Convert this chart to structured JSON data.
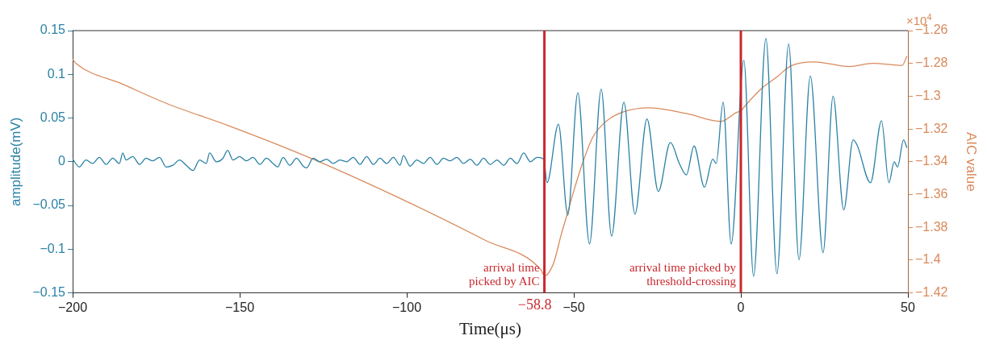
{
  "chart_data": {
    "type": "line",
    "xlabel": "Time(μs)",
    "ylabel": "amplitude(mV)",
    "y2label": "AIC value",
    "xlim": [
      -200,
      50
    ],
    "xticks": [
      -200,
      -150,
      -100,
      -50,
      0,
      50
    ],
    "ylim": [
      -0.15,
      0.15
    ],
    "yticks": [
      -0.15,
      -0.1,
      -0.05,
      0,
      0.05,
      0.1,
      0.15
    ],
    "y2lim": [
      -1.42,
      -1.26
    ],
    "y2ticks": [
      -1.42,
      -1.4,
      -1.38,
      -1.36,
      -1.34,
      -1.32,
      -1.3,
      -1.28,
      -1.26
    ],
    "grid": false,
    "legend": false,
    "marker": "none",
    "line_style": "solid",
    "series": [
      {
        "color": "#2b82a6",
        "x": [
          -200,
          -198,
          -196,
          -194,
          -192,
          -190,
          -188,
          -186,
          -185,
          -184,
          -182,
          -180,
          -178,
          -176,
          -174,
          -172,
          -170,
          -168,
          -166,
          -164,
          -162,
          -160,
          -159,
          -157,
          -155,
          -153.6,
          -152,
          -150,
          -148,
          -146,
          -144,
          -142,
          -140,
          -138.6,
          -137,
          -135,
          -133,
          -131,
          -130,
          -128,
          -126,
          -124,
          -122,
          -120,
          -118,
          -116,
          -114,
          -112,
          -110,
          -108,
          -106,
          -104,
          -102,
          -101,
          -99,
          -97,
          -95,
          -93,
          -91,
          -89,
          -87,
          -85,
          -83,
          -81,
          -79,
          -77,
          -75,
          -73,
          -71,
          -69,
          -67,
          -65,
          -63,
          -61,
          -59.5,
          -58.9,
          -58,
          -54.6,
          -51.8,
          -48.8,
          -45.3,
          -41.8,
          -38.7,
          -35,
          -31.7,
          -28.1,
          -24.7,
          -21.1,
          -18.3,
          -16.3,
          -14,
          -10.9,
          -8.4,
          -7.4,
          -5.3,
          -2.9,
          0.9,
          3.8,
          7.5,
          10.8,
          14.3,
          17.4,
          20.8,
          24.6,
          27.6,
          30.8,
          33.6,
          34.8,
          38.8,
          42.1,
          44.3,
          45.9,
          46.9,
          48.7,
          49.7
        ],
        "values": [
          0.003,
          -0.006,
          0.002,
          -0.002,
          0.005,
          -0.003,
          0.004,
          -0.002,
          0.01,
          0.002,
          0.006,
          -0.003,
          0.004,
          0.001,
          0.005,
          -0.006,
          -0.004,
          0.002,
          -0.004,
          -0.01,
          0.002,
          -0.002,
          0.01,
          0.0,
          0.004,
          0.013,
          0.002,
          0.006,
          0.001,
          0.005,
          -0.003,
          0.004,
          -0.002,
          -0.006,
          0.005,
          -0.004,
          0.004,
          -0.005,
          -0.007,
          0.004,
          0.0,
          0.003,
          -0.002,
          0.002,
          0.0,
          0.005,
          -0.003,
          0.006,
          -0.003,
          0.004,
          -0.002,
          0.005,
          -0.004,
          0.007,
          -0.005,
          0.002,
          -0.002,
          0.005,
          -0.003,
          0.004,
          0.001,
          0.005,
          -0.002,
          0.003,
          -0.004,
          0.004,
          -0.003,
          0.002,
          -0.004,
          0.004,
          -0.002,
          0.01,
          0.0,
          0.005,
          0.004,
          0.001,
          -0.024,
          0.043,
          -0.061,
          0.079,
          -0.094,
          0.083,
          -0.085,
          0.068,
          -0.06,
          0.049,
          -0.034,
          0.022,
          -0.003,
          -0.015,
          0.018,
          -0.029,
          0.003,
          -0.002,
          0.068,
          -0.094,
          0.116,
          -0.131,
          0.141,
          -0.128,
          0.135,
          -0.112,
          0.098,
          -0.104,
          0.075,
          -0.055,
          0.025,
          0.019,
          -0.024,
          0.047,
          -0.024,
          0,
          -0.006,
          0.025,
          0.016
        ]
      },
      {
        "color": "#d98a5c",
        "axis": "y2",
        "x": [
          -200,
          -199,
          -185.2,
          -171.7,
          -153.6,
          -128.3,
          -101.3,
          -76.4,
          -59.8,
          -58.8,
          -56.1,
          -53.7,
          -52.2,
          -50.2,
          -47.4,
          -44.3,
          -40.3,
          -35.5,
          -27.5,
          -16.3,
          -6,
          -1.2,
          0,
          1.3,
          6.1,
          10.8,
          14.8,
          22,
          32.4,
          39.5,
          48.3,
          49.7
        ],
        "values": [
          -1.2775,
          -1.28,
          -1.2925,
          -1.3046,
          -1.3178,
          -1.3382,
          -1.363,
          -1.388,
          -1.406,
          -1.4096,
          -1.4021,
          -1.3839,
          -1.3735,
          -1.3592,
          -1.341,
          -1.325,
          -1.3153,
          -1.3098,
          -1.3071,
          -1.3106,
          -1.3154,
          -1.3098,
          -1.309,
          -1.3058,
          -1.2955,
          -1.2883,
          -1.2817,
          -1.2791,
          -1.2819,
          -1.28,
          -1.2812,
          -1.2756
        ]
      }
    ],
    "ref_lines": [
      {
        "axis": "x",
        "value": -58.8,
        "label": "−58.8",
        "color": "#c8282e"
      },
      {
        "axis": "x",
        "value": 0,
        "color": "#c8282e"
      }
    ],
    "annotations": [
      "arrival time picked by AIC",
      "arrival time picked by threshold-crossing",
      "×10$^{4}$"
    ]
  }
}
